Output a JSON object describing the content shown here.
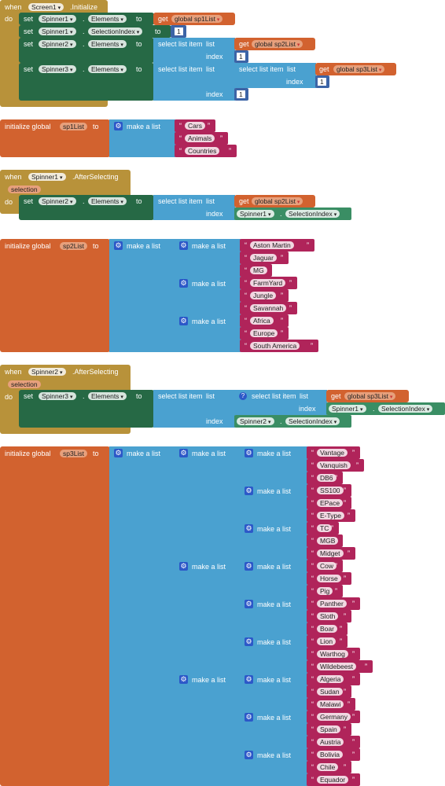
{
  "labels": {
    "when": "when",
    "do": "do",
    "set": "set",
    "to": "to",
    "get": "get",
    "dot": ".",
    "initialize_global": "initialize global",
    "make_a_list": "make a list",
    "select_list_item": "select list item",
    "list": "list",
    "index": "index",
    "selection": "selection",
    "quote": "“",
    "quote_close": "”",
    "gear": "⚙",
    "question": "?"
  },
  "handlers": {
    "screen_init": {
      "component": "Screen1",
      "event": ".Initialize"
    },
    "sp1_after": {
      "component": "Spinner1",
      "event": ".AfterSelecting"
    },
    "sp2_after": {
      "component": "Spinner2",
      "event": ".AfterSelecting"
    }
  },
  "components": {
    "sp1": "Spinner1",
    "sp2": "Spinner2",
    "sp3": "Spinner3"
  },
  "props": {
    "elements": "Elements",
    "selection_index": "SelectionIndex"
  },
  "vars": {
    "sp1": "sp1List",
    "sp2": "sp2List",
    "sp3": "sp3List",
    "get_sp1": "global sp1List",
    "get_sp2": "global sp2List",
    "get_sp3": "global sp3List"
  },
  "numbers": {
    "one": "1"
  },
  "sp1_items": [
    "Cars",
    "Animals",
    "Countries"
  ],
  "sp2_items": [
    "Aston Martin",
    "Jaguar",
    "MG",
    "FarmYard",
    "Jungle",
    "Savannah",
    "Africa",
    "Europe",
    "South America"
  ],
  "sp3_items": [
    "Vantage",
    "Vanquish",
    "DB6",
    "SS100",
    "EPace",
    "E-Type",
    "TC",
    "MGB",
    "Midget",
    "Cow",
    "Horse",
    "Pig",
    "Panther",
    "Sloth",
    "Boar",
    "Lion",
    "Warthog",
    "Wildebeest",
    "Algeria",
    "Sudan",
    "Malawi",
    "Germany",
    "Spain",
    "Austria",
    "Bolivia",
    "Chile",
    "Equador"
  ],
  "colors": {
    "event": "#b8923a",
    "setter": "#266945",
    "list": "#4aa1d0",
    "variable": "#d2622f",
    "text": "#b0245a",
    "number": "#3c64a6",
    "component": "#3a8e64"
  }
}
